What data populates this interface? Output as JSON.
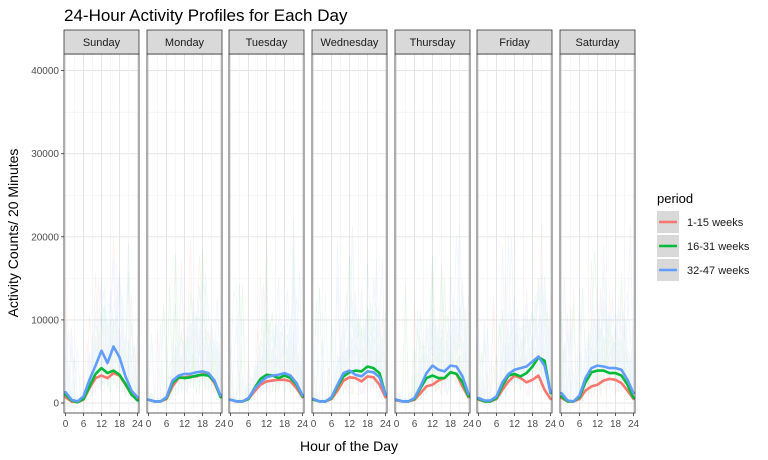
{
  "chart_data": {
    "type": "line",
    "title": "24-Hour Activity Profiles for Each Day",
    "xlabel": "Hour of the Day",
    "ylabel": "Activity Counts/ 20 Minutes",
    "facets": [
      "Sunday",
      "Monday",
      "Tuesday",
      "Wednesday",
      "Thursday",
      "Friday",
      "Saturday"
    ],
    "x_ticks": [
      0,
      6,
      12,
      18,
      24
    ],
    "xlim": [
      -0.5,
      24.5
    ],
    "y_ticks": [
      0,
      10000,
      20000,
      30000,
      40000
    ],
    "ylim": [
      -1200,
      42000
    ],
    "grid": true,
    "legend": {
      "title": "period",
      "position": "right",
      "entries": [
        {
          "name": "1-15 weeks",
          "color": "#F8766D"
        },
        {
          "name": "16-31 weeks",
          "color": "#00BA38"
        },
        {
          "name": "32-47 weeks",
          "color": "#619CFF"
        }
      ]
    },
    "x": [
      0,
      2,
      4,
      6,
      8,
      10,
      12,
      14,
      16,
      18,
      20,
      22,
      24
    ],
    "panels": [
      {
        "facet": "Sunday",
        "series": [
          {
            "name": "1-15 weeks",
            "values": [
              700,
              200,
              100,
              400,
              1800,
              3000,
              3300,
              3000,
              3600,
              3300,
              2200,
              1000,
              500
            ]
          },
          {
            "name": "16-31 weeks",
            "values": [
              1000,
              300,
              100,
              500,
              2000,
              3500,
              4200,
              3600,
              3900,
              3400,
              2300,
              1000,
              300
            ]
          },
          {
            "name": "32-47 weeks",
            "values": [
              1300,
              400,
              200,
              800,
              2800,
              4500,
              6300,
              4800,
              6800,
              5500,
              3200,
              1500,
              700
            ]
          }
        ]
      },
      {
        "facet": "Monday",
        "series": [
          {
            "name": "1-15 weeks",
            "values": [
              400,
              200,
              200,
              500,
              2000,
              3000,
              3100,
              3200,
              3200,
              3500,
              3400,
              2400,
              800
            ]
          },
          {
            "name": "16-31 weeks",
            "values": [
              400,
              200,
              200,
              600,
              2400,
              3100,
              3000,
              3100,
              3300,
              3400,
              3300,
              2600,
              700
            ]
          },
          {
            "name": "32-47 weeks",
            "values": [
              400,
              200,
              200,
              700,
              2700,
              3300,
              3500,
              3500,
              3700,
              3800,
              3600,
              2700,
              900
            ]
          }
        ]
      },
      {
        "facet": "Tuesday",
        "series": [
          {
            "name": "1-15 weeks",
            "values": [
              400,
              200,
              200,
              500,
              1400,
              2200,
              2600,
              2700,
              2800,
              2800,
              2600,
              1800,
              700
            ]
          },
          {
            "name": "16-31 weeks",
            "values": [
              400,
              200,
              200,
              500,
              1800,
              2900,
              3400,
              3300,
              3000,
              3300,
              3000,
              2200,
              800
            ]
          },
          {
            "name": "32-47 weeks",
            "values": [
              400,
              200,
              200,
              600,
              1700,
              2500,
              3100,
              3300,
              3400,
              3600,
              3300,
              2400,
              900
            ]
          }
        ]
      },
      {
        "facet": "Wednesday",
        "series": [
          {
            "name": "1-15 weeks",
            "values": [
              400,
              200,
              200,
              500,
              1500,
              2700,
              3100,
              3000,
              2600,
              3200,
              3100,
              2200,
              700
            ]
          },
          {
            "name": "16-31 weeks",
            "values": [
              400,
              200,
              200,
              600,
              2000,
              3200,
              3700,
              3900,
              3800,
              4400,
              4200,
              3600,
              1000
            ]
          },
          {
            "name": "32-47 weeks",
            "values": [
              500,
              200,
              200,
              700,
              2200,
              3600,
              3900,
              3400,
              3200,
              3800,
              3700,
              3100,
              1000
            ]
          }
        ]
      },
      {
        "facet": "Thursday",
        "series": [
          {
            "name": "1-15 weeks",
            "values": [
              300,
              200,
              200,
              400,
              1200,
              2000,
              2200,
              2700,
              3000,
              3700,
              3500,
              2000,
              700
            ]
          },
          {
            "name": "16-31 weeks",
            "values": [
              400,
              200,
              200,
              500,
              1800,
              3000,
              3300,
              3000,
              3000,
              3700,
              3500,
              2500,
              800
            ]
          },
          {
            "name": "32-47 weeks",
            "values": [
              400,
              200,
              200,
              600,
              2000,
              3600,
              4500,
              4000,
              3800,
              4500,
              4400,
              3200,
              1100
            ]
          }
        ]
      },
      {
        "facet": "Friday",
        "series": [
          {
            "name": "1-15 weeks",
            "values": [
              400,
              200,
              200,
              500,
              1600,
              2600,
              3300,
              3000,
              2500,
              2800,
              3300,
              1600,
              500
            ]
          },
          {
            "name": "16-31 weeks",
            "values": [
              500,
              200,
              200,
              600,
              2100,
              3300,
              3500,
              3200,
              3600,
              4400,
              5500,
              5100,
              1200
            ]
          },
          {
            "name": "32-47 weeks",
            "values": [
              600,
              300,
              300,
              800,
              2500,
              3500,
              4000,
              4200,
              4400,
              5000,
              5600,
              4500,
              1300
            ]
          }
        ]
      },
      {
        "facet": "Saturday",
        "series": [
          {
            "name": "1-15 weeks",
            "values": [
              600,
              200,
              200,
              500,
              1500,
              2000,
              2200,
              2700,
              2900,
              2800,
              2400,
              1500,
              500
            ]
          },
          {
            "name": "16-31 weeks",
            "values": [
              800,
              200,
              200,
              700,
              2500,
              3700,
              3900,
              3900,
              3600,
              3600,
              3300,
              2200,
              600
            ]
          },
          {
            "name": "32-47 weeks",
            "values": [
              1200,
              300,
              200,
              900,
              3000,
              4200,
              4500,
              4400,
              4200,
              4200,
              4000,
              2800,
              1200
            ]
          }
        ]
      }
    ]
  }
}
